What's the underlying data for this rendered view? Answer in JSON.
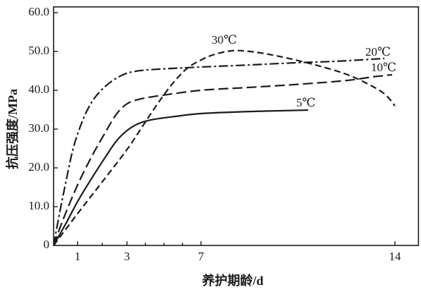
{
  "chart_data": {
    "type": "line",
    "title": "",
    "xlabel": "养护期龄/d",
    "ylabel": "抗压强度/MPa",
    "xlim": [
      0,
      14.85
    ],
    "ylim": [
      0,
      61.5
    ],
    "x_ticks": [
      1,
      3,
      7,
      14
    ],
    "x_tick_labels": [
      "1",
      "3",
      "7",
      "14"
    ],
    "x_minor_ticks": [
      2,
      4,
      5,
      6
    ],
    "y_ticks": [
      0,
      10,
      20,
      30,
      40,
      50,
      60
    ],
    "y_tick_labels": [
      "0",
      "10.0",
      "20.0",
      "30.0",
      "40.0",
      "50.0",
      "60.0"
    ],
    "grid": false,
    "legend": "none",
    "series": [
      {
        "name": "5℃",
        "line_style": "solid",
        "x": [
          0,
          0.5,
          1,
          1.57,
          2.14,
          2.57,
          3,
          3.57,
          4.33,
          5.67,
          7,
          8.65,
          10.87
        ],
        "y": [
          0,
          5.5,
          11.3,
          17.3,
          22.9,
          26.9,
          29.6,
          31.3,
          32.4,
          33.3,
          34.0,
          34.5,
          34.9
        ]
      },
      {
        "name": "10℃",
        "line_style": "long-dashed",
        "x": [
          0,
          0.41,
          1,
          1.57,
          2.14,
          2.57,
          3,
          3.76,
          4.9,
          7,
          8.65,
          10.44,
          12.22,
          13.24,
          13.9
        ],
        "y": [
          0,
          6.9,
          15.6,
          22.9,
          29.3,
          33.8,
          36.5,
          37.8,
          38.7,
          40.0,
          40.7,
          41.5,
          42.5,
          43.5,
          44.0
        ]
      },
      {
        "name": "20℃",
        "line_style": "dash-dot",
        "x": [
          0,
          0.26,
          0.5,
          0.76,
          1,
          1.34,
          1.71,
          2.14,
          2.57,
          3,
          3.76,
          4.9,
          7,
          8.65,
          10.44,
          11.96,
          13.62
        ],
        "y": [
          0,
          8.7,
          16.0,
          23.6,
          28.7,
          34.2,
          38.2,
          41.1,
          43.1,
          44.4,
          45.1,
          45.5,
          46.0,
          46.5,
          47.1,
          47.5,
          48.2
        ]
      },
      {
        "name": "30℃",
        "line_style": "dashed",
        "x": [
          0,
          1,
          2,
          3,
          3.95,
          4.71,
          5.48,
          6.24,
          7,
          7.51,
          8.15,
          8.78,
          9.42,
          10.18,
          11.2,
          12.22,
          12.98,
          13.62,
          14
        ],
        "y": [
          0,
          8.2,
          16.4,
          24.7,
          31.5,
          36.9,
          41.8,
          45.6,
          47.8,
          49.3,
          50.2,
          50.0,
          49.3,
          48.2,
          46.4,
          44.2,
          41.8,
          39.1,
          36.0
        ]
      }
    ]
  },
  "colors": {
    "ink": "#1a1a1a",
    "background": "#ffffff"
  }
}
